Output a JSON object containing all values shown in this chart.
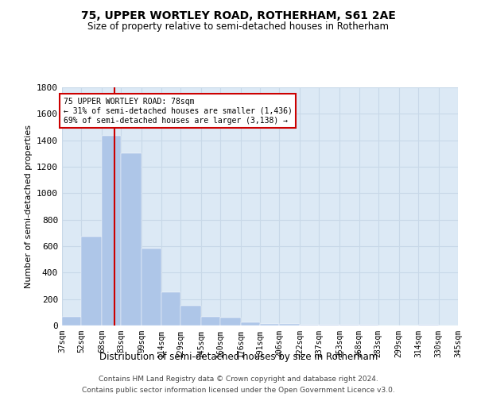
{
  "title_line1": "75, UPPER WORTLEY ROAD, ROTHERHAM, S61 2AE",
  "title_line2": "Size of property relative to semi-detached houses in Rotherham",
  "xlabel": "Distribution of semi-detached houses by size in Rotherham",
  "ylabel": "Number of semi-detached properties",
  "footer_line1": "Contains HM Land Registry data © Crown copyright and database right 2024.",
  "footer_line2": "Contains public sector information licensed under the Open Government Licence v3.0.",
  "bar_edges": [
    37,
    52,
    68,
    83,
    99,
    114,
    129,
    145,
    160,
    176,
    191,
    206,
    222,
    237,
    253,
    268,
    283,
    299,
    314,
    330,
    345
  ],
  "bar_heights": [
    67,
    672,
    1436,
    1300,
    580,
    250,
    150,
    65,
    60,
    25,
    15,
    10,
    5,
    5,
    5,
    5,
    0,
    0,
    5,
    0,
    0
  ],
  "bar_color": "#aec6e8",
  "bar_edge_color": "#aec6e8",
  "grid_color": "#c8d8e8",
  "background_color": "#dce9f5",
  "property_size": 78,
  "vline_x": 78,
  "annotation_text_line1": "75 UPPER WORTLEY ROAD: 78sqm",
  "annotation_text_line2": "← 31% of semi-detached houses are smaller (1,436)",
  "annotation_text_line3": "69% of semi-detached houses are larger (3,138) →",
  "annotation_box_color": "#ffffff",
  "annotation_box_edge_color": "#cc0000",
  "vline_color": "#cc0000",
  "ylim": [
    0,
    1800
  ],
  "yticks": [
    0,
    200,
    400,
    600,
    800,
    1000,
    1200,
    1400,
    1600,
    1800
  ],
  "tick_labels": [
    "37sqm",
    "52sqm",
    "68sqm",
    "83sqm",
    "99sqm",
    "114sqm",
    "129sqm",
    "145sqm",
    "160sqm",
    "176sqm",
    "191sqm",
    "206sqm",
    "222sqm",
    "237sqm",
    "253sqm",
    "268sqm",
    "283sqm",
    "299sqm",
    "314sqm",
    "330sqm",
    "345sqm"
  ]
}
